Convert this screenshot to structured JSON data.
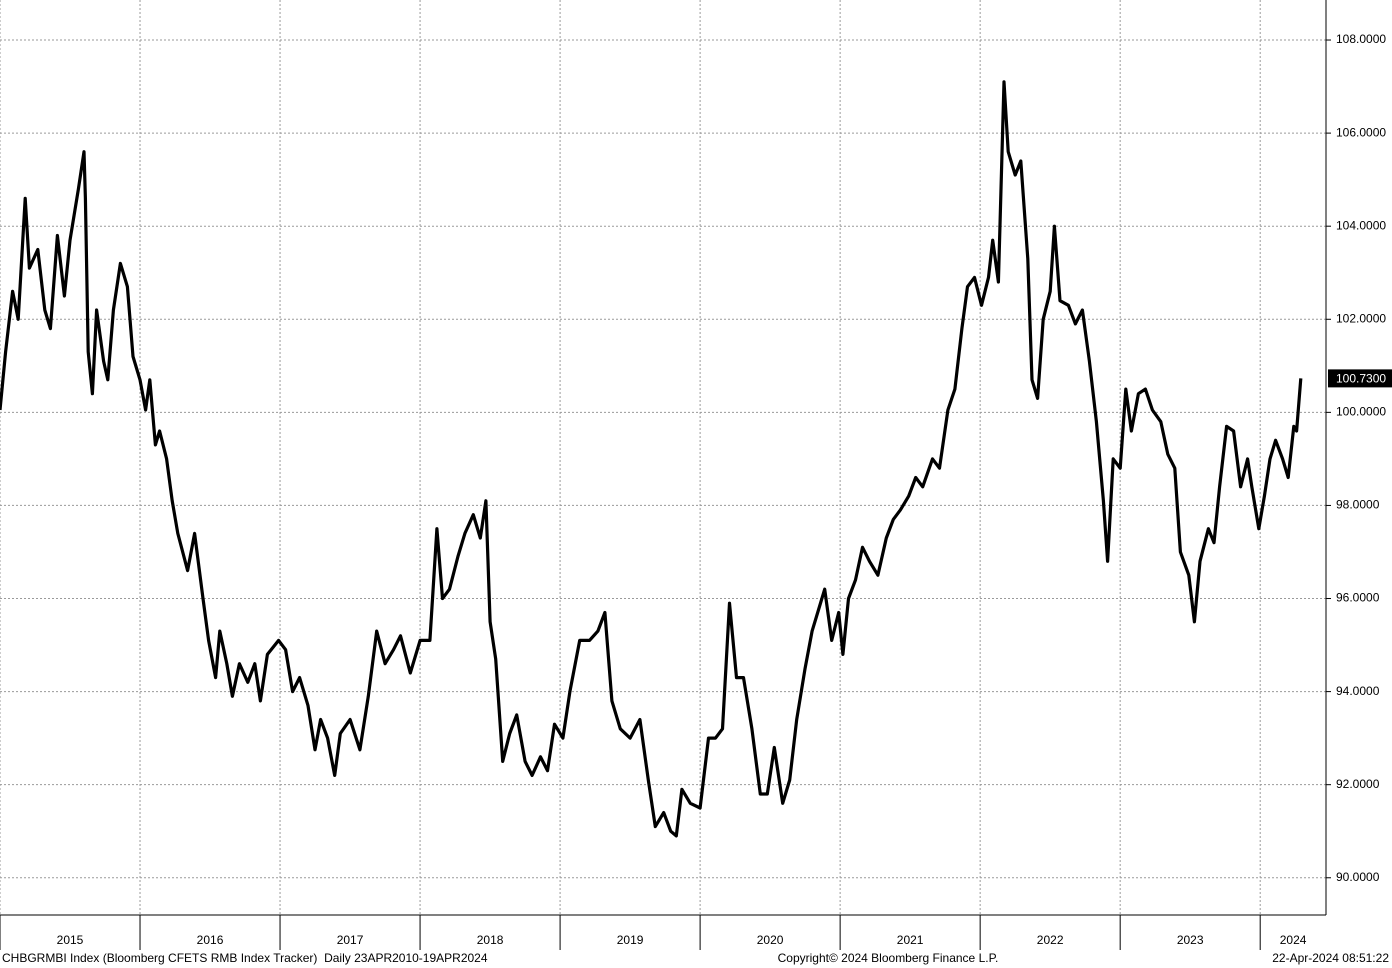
{
  "chart_data": {
    "type": "line",
    "x": [
      2015.0,
      2015.04,
      2015.09,
      2015.13,
      2015.18,
      2015.21,
      2015.27,
      2015.32,
      2015.36,
      2015.41,
      2015.46,
      2015.5,
      2015.56,
      2015.6,
      2015.61,
      2015.63,
      2015.66,
      2015.69,
      2015.74,
      2015.77,
      2015.81,
      2015.86,
      2015.91,
      2015.95,
      2016.0,
      2016.04,
      2016.07,
      2016.11,
      2016.14,
      2016.19,
      2016.23,
      2016.27,
      2016.34,
      2016.39,
      2016.45,
      2016.49,
      2016.54,
      2016.57,
      2016.62,
      2016.66,
      2016.71,
      2016.77,
      2016.82,
      2016.86,
      2016.91,
      2016.99,
      2017.04,
      2017.09,
      2017.14,
      2017.2,
      2017.25,
      2017.29,
      2017.34,
      2017.39,
      2017.43,
      2017.5,
      2017.57,
      2017.63,
      2017.69,
      2017.75,
      2017.81,
      2017.86,
      2017.93,
      2018.0,
      2018.07,
      2018.12,
      2018.16,
      2018.21,
      2018.27,
      2018.32,
      2018.38,
      2018.43,
      2018.47,
      2018.5,
      2018.54,
      2018.59,
      2018.64,
      2018.69,
      2018.75,
      2018.8,
      2018.86,
      2018.91,
      2018.96,
      2019.02,
      2019.07,
      2019.14,
      2019.21,
      2019.27,
      2019.32,
      2019.37,
      2019.43,
      2019.5,
      2019.57,
      2019.63,
      2019.68,
      2019.74,
      2019.79,
      2019.83,
      2019.87,
      2019.93,
      2020.0,
      2020.06,
      2020.11,
      2020.16,
      2020.21,
      2020.26,
      2020.31,
      2020.37,
      2020.43,
      2020.48,
      2020.53,
      2020.59,
      2020.64,
      2020.69,
      2020.75,
      2020.8,
      2020.84,
      2020.89,
      2020.94,
      2020.99,
      2021.02,
      2021.06,
      2021.11,
      2021.16,
      2021.21,
      2021.27,
      2021.33,
      2021.38,
      2021.43,
      2021.49,
      2021.54,
      2021.59,
      2021.66,
      2021.71,
      2021.77,
      2021.82,
      2021.87,
      2021.91,
      2021.96,
      2022.01,
      2022.06,
      2022.09,
      2022.13,
      2022.17,
      2022.2,
      2022.25,
      2022.29,
      2022.34,
      2022.37,
      2022.41,
      2022.45,
      2022.5,
      2022.53,
      2022.57,
      2022.63,
      2022.68,
      2022.73,
      2022.78,
      2022.83,
      2022.88,
      2022.91,
      2022.95,
      2023.0,
      2023.04,
      2023.08,
      2023.13,
      2023.18,
      2023.23,
      2023.29,
      2023.34,
      2023.39,
      2023.43,
      2023.49,
      2023.53,
      2023.57,
      2023.63,
      2023.67,
      2023.71,
      2023.76,
      2023.81,
      2023.86,
      2023.91,
      2023.94,
      2023.99,
      2024.03,
      2024.07,
      2024.11,
      2024.16,
      2024.2,
      2024.24,
      2024.26,
      2024.29
    ],
    "series": [
      {
        "color": "#000000",
        "values": [
          100.05,
          101.3,
          102.6,
          102.0,
          104.6,
          103.1,
          103.5,
          102.2,
          101.8,
          103.8,
          102.5,
          103.7,
          104.8,
          105.6,
          104.6,
          101.3,
          100.4,
          102.2,
          101.1,
          100.7,
          102.2,
          103.2,
          102.7,
          101.2,
          100.7,
          100.05,
          100.7,
          99.3,
          99.6,
          99.0,
          98.1,
          97.4,
          96.6,
          97.4,
          96.0,
          95.1,
          94.3,
          95.3,
          94.6,
          93.9,
          94.6,
          94.2,
          94.6,
          93.8,
          94.8,
          95.1,
          94.9,
          94.0,
          94.3,
          93.7,
          92.75,
          93.4,
          93.0,
          92.2,
          93.1,
          93.4,
          92.75,
          93.9,
          95.3,
          94.6,
          94.9,
          95.2,
          94.4,
          95.1,
          95.1,
          97.5,
          96.0,
          96.2,
          96.9,
          97.4,
          97.8,
          97.3,
          98.1,
          95.5,
          94.7,
          92.5,
          93.1,
          93.5,
          92.5,
          92.2,
          92.6,
          92.3,
          93.3,
          93.0,
          94.0,
          95.1,
          95.1,
          95.3,
          95.7,
          93.8,
          93.2,
          93.0,
          93.4,
          92.1,
          91.1,
          91.4,
          91.0,
          90.9,
          91.9,
          91.6,
          91.5,
          93.0,
          93.0,
          93.2,
          95.9,
          94.3,
          94.3,
          93.2,
          91.8,
          91.8,
          92.8,
          91.6,
          92.1,
          93.4,
          94.5,
          95.3,
          95.7,
          96.2,
          95.1,
          95.7,
          94.8,
          96.0,
          96.4,
          97.1,
          96.8,
          96.5,
          97.3,
          97.7,
          97.9,
          98.2,
          98.6,
          98.4,
          99.0,
          98.8,
          100.05,
          100.5,
          101.8,
          102.7,
          102.9,
          102.3,
          102.9,
          103.7,
          102.8,
          107.1,
          105.6,
          105.1,
          105.4,
          103.3,
          100.7,
          100.3,
          102.0,
          102.6,
          104.0,
          102.4,
          102.3,
          101.9,
          102.2,
          101.1,
          99.8,
          98.1,
          96.8,
          99.0,
          98.8,
          100.5,
          99.6,
          100.4,
          100.5,
          100.05,
          99.8,
          99.1,
          98.8,
          97.0,
          96.5,
          95.5,
          96.8,
          97.5,
          97.2,
          98.4,
          99.7,
          99.6,
          98.4,
          99.0,
          98.4,
          97.5,
          98.2,
          99.0,
          99.4,
          99.0,
          98.6,
          99.7,
          99.6,
          100.73
        ]
      }
    ],
    "last_label": {
      "value": 100.73,
      "label": "100.7300"
    },
    "xlim": [
      2015,
      2024.47
    ],
    "xticks": [
      2015,
      2016,
      2017,
      2018,
      2019,
      2020,
      2021,
      2022,
      2023,
      2024
    ],
    "xtick_labels": [
      "2015",
      "2016",
      "2017",
      "2018",
      "2019",
      "2020",
      "2021",
      "2022",
      "2023",
      "2024"
    ],
    "ylim": [
      89.2,
      108.86
    ],
    "yticks": [
      {
        "value": 90,
        "label": "90.0000"
      },
      {
        "value": 92,
        "label": "92.0000"
      },
      {
        "value": 94,
        "label": "94.0000"
      },
      {
        "value": 96,
        "label": "96.0000"
      },
      {
        "value": 98,
        "label": "98.0000"
      },
      {
        "value": 100,
        "label": "100.0000"
      },
      {
        "value": 102,
        "label": "102.0000"
      },
      {
        "value": 104,
        "label": "104.0000"
      },
      {
        "value": 106,
        "label": "106.0000"
      },
      {
        "value": 108,
        "label": "108.0000"
      }
    ],
    "grid": true,
    "footer": {
      "left": "CHBGRMBI Index (Bloomberg CFETS RMB Index Tracker)  Daily 23APR2010-19APR2024",
      "center": "Copyright© 2024 Bloomberg Finance L.P.",
      "right": "22-Apr-2024 08:51:22"
    }
  }
}
